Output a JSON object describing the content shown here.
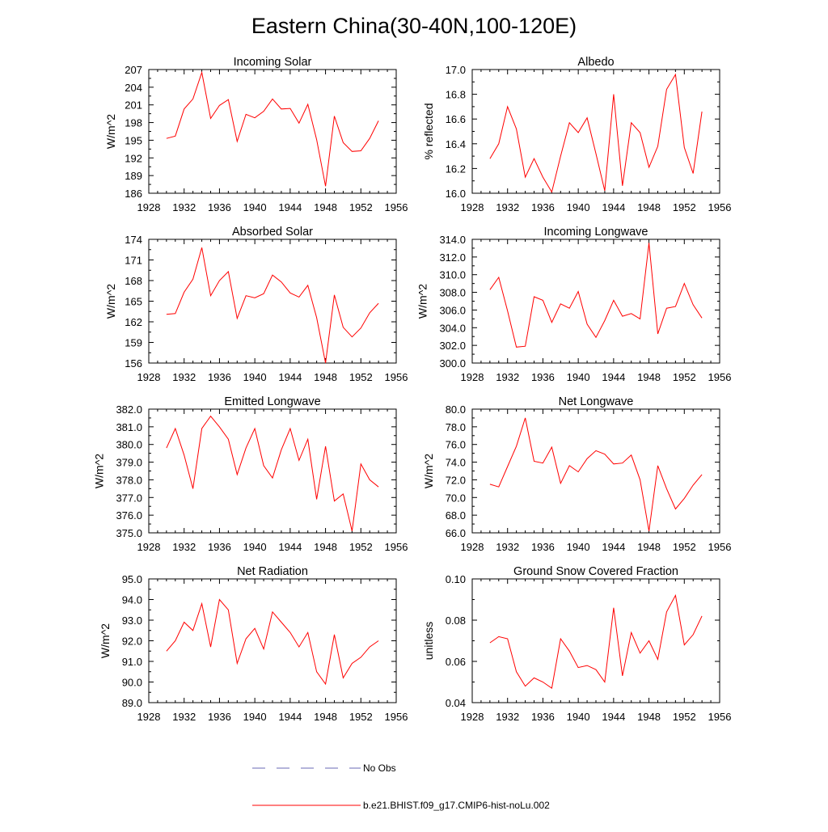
{
  "title": "Eastern China(30-40N,100-120E)",
  "legend": {
    "obs_label": "No Obs",
    "obs_color": "#6a6ab4",
    "model_label": "b.e21.BHIST.f09_g17.CMIP6-hist-noLu.002",
    "model_color": "#ff0000"
  },
  "years": [
    1930,
    1931,
    1932,
    1933,
    1934,
    1935,
    1936,
    1937,
    1938,
    1939,
    1940,
    1941,
    1942,
    1943,
    1944,
    1945,
    1946,
    1947,
    1948,
    1949,
    1950,
    1951,
    1952,
    1953,
    1954
  ],
  "chart_data": [
    {
      "type": "line",
      "title": "Incoming Solar",
      "ylabel": "W/m^2",
      "xlim": [
        1928,
        1956
      ],
      "xticks": [
        "1928",
        "1932",
        "1936",
        "1940",
        "1944",
        "1948",
        "1952",
        "1956"
      ],
      "ylim": [
        186,
        207
      ],
      "yticks": [
        "186",
        "189",
        "192",
        "195",
        "198",
        "201",
        "204",
        "207"
      ],
      "series": [
        {
          "values": [
            195.3,
            195.7,
            200.3,
            202.0,
            206.5,
            198.7,
            200.9,
            201.9,
            194.8,
            199.4,
            198.8,
            199.9,
            202.0,
            200.3,
            200.4,
            197.9,
            201.1,
            195.1,
            187.2,
            199.1,
            194.6,
            193.1,
            193.2,
            195.3,
            198.3
          ]
        }
      ]
    },
    {
      "type": "line",
      "title": "Albedo",
      "ylabel": "% reflected",
      "xlim": [
        1928,
        1956
      ],
      "xticks": [
        "1928",
        "1932",
        "1936",
        "1940",
        "1944",
        "1948",
        "1952",
        "1956"
      ],
      "ylim": [
        16.0,
        17.0
      ],
      "yticks": [
        "16.0",
        "16.2",
        "16.4",
        "16.6",
        "16.8",
        "17.0"
      ],
      "series": [
        {
          "values": [
            16.28,
            16.4,
            16.7,
            16.52,
            16.13,
            16.28,
            16.13,
            16.01,
            16.3,
            16.57,
            16.49,
            16.61,
            16.32,
            16.02,
            16.8,
            16.06,
            16.57,
            16.49,
            16.21,
            16.38,
            16.84,
            16.96,
            16.37,
            16.16,
            16.66
          ]
        }
      ]
    },
    {
      "type": "line",
      "title": "Absorbed Solar",
      "ylabel": "W/m^2",
      "xlim": [
        1928,
        1956
      ],
      "xticks": [
        "1928",
        "1932",
        "1936",
        "1940",
        "1944",
        "1948",
        "1952",
        "1956"
      ],
      "ylim": [
        156,
        174
      ],
      "yticks": [
        "156",
        "159",
        "162",
        "165",
        "168",
        "171",
        "174"
      ],
      "series": [
        {
          "values": [
            163.1,
            163.2,
            166.3,
            168.2,
            172.8,
            165.8,
            168.0,
            169.3,
            162.5,
            165.8,
            165.5,
            166.1,
            168.8,
            167.8,
            166.2,
            165.6,
            167.3,
            162.6,
            156.0,
            165.9,
            161.2,
            159.8,
            161.1,
            163.3,
            164.7
          ]
        }
      ]
    },
    {
      "type": "line",
      "title": "Incoming Longwave",
      "ylabel": "W/m^2",
      "xlim": [
        1928,
        1956
      ],
      "xticks": [
        "1928",
        "1932",
        "1936",
        "1940",
        "1944",
        "1948",
        "1952",
        "1956"
      ],
      "ylim": [
        300.0,
        314.0
      ],
      "yticks": [
        "300.0",
        "302.0",
        "304.0",
        "306.0",
        "308.0",
        "310.0",
        "312.0",
        "314.0"
      ],
      "series": [
        {
          "values": [
            308.3,
            309.7,
            305.9,
            301.8,
            301.9,
            307.5,
            307.1,
            304.6,
            306.7,
            306.2,
            308.1,
            304.4,
            302.9,
            304.8,
            307.1,
            305.3,
            305.6,
            305.0,
            313.6,
            303.3,
            306.2,
            306.4,
            309.0,
            306.6,
            305.1
          ]
        }
      ]
    },
    {
      "type": "line",
      "title": "Emitted Longwave",
      "ylabel": "W/m^2",
      "xlim": [
        1928,
        1956
      ],
      "xticks": [
        "1928",
        "1932",
        "1936",
        "1940",
        "1944",
        "1948",
        "1952",
        "1956"
      ],
      "ylim": [
        375.0,
        382.0
      ],
      "yticks": [
        "375.0",
        "376.0",
        "377.0",
        "378.0",
        "379.0",
        "380.0",
        "381.0",
        "382.0"
      ],
      "series": [
        {
          "values": [
            379.8,
            380.9,
            379.4,
            377.5,
            380.9,
            381.6,
            381.0,
            380.3,
            378.3,
            379.8,
            380.9,
            378.8,
            378.1,
            379.7,
            380.9,
            379.1,
            380.3,
            376.9,
            379.9,
            376.8,
            377.2,
            375.1,
            378.9,
            378.0,
            377.6
          ]
        }
      ]
    },
    {
      "type": "line",
      "title": "Net Longwave",
      "ylabel": "W/m^2",
      "xlim": [
        1928,
        1956
      ],
      "xticks": [
        "1928",
        "1932",
        "1936",
        "1940",
        "1944",
        "1948",
        "1952",
        "1956"
      ],
      "ylim": [
        66.0,
        80.0
      ],
      "yticks": [
        "66.0",
        "68.0",
        "70.0",
        "72.0",
        "74.0",
        "76.0",
        "78.0",
        "80.0"
      ],
      "series": [
        {
          "values": [
            71.5,
            71.2,
            73.5,
            75.8,
            79.0,
            74.1,
            73.9,
            75.7,
            71.6,
            73.6,
            72.9,
            74.4,
            75.3,
            74.9,
            73.8,
            73.9,
            74.8,
            72.0,
            66.2,
            73.6,
            71.0,
            68.7,
            69.9,
            71.4,
            72.6
          ]
        }
      ]
    },
    {
      "type": "line",
      "title": "Net Radiation",
      "ylabel": "W/m^2",
      "xlim": [
        1928,
        1956
      ],
      "xticks": [
        "1928",
        "1932",
        "1936",
        "1940",
        "1944",
        "1948",
        "1952",
        "1956"
      ],
      "ylim": [
        89.0,
        95.0
      ],
      "yticks": [
        "89.0",
        "90.0",
        "91.0",
        "92.0",
        "93.0",
        "94.0",
        "95.0"
      ],
      "series": [
        {
          "values": [
            91.5,
            92.0,
            92.9,
            92.5,
            93.8,
            91.7,
            94.0,
            93.5,
            90.9,
            92.1,
            92.6,
            91.6,
            93.4,
            92.9,
            92.4,
            91.7,
            92.4,
            90.5,
            89.9,
            92.3,
            90.2,
            90.9,
            91.2,
            91.7,
            92.0
          ]
        }
      ]
    },
    {
      "type": "line",
      "title": "Ground Snow Covered Fraction",
      "ylabel": "unitless",
      "xlim": [
        1928,
        1956
      ],
      "xticks": [
        "1928",
        "1932",
        "1936",
        "1940",
        "1944",
        "1948",
        "1952",
        "1956"
      ],
      "ylim": [
        0.04,
        0.1
      ],
      "yticks": [
        "0.04",
        "0.06",
        "0.08",
        "0.10"
      ],
      "series": [
        {
          "values": [
            0.069,
            0.072,
            0.071,
            0.055,
            0.048,
            0.052,
            0.05,
            0.047,
            0.071,
            0.065,
            0.057,
            0.058,
            0.056,
            0.05,
            0.086,
            0.053,
            0.074,
            0.064,
            0.07,
            0.061,
            0.084,
            0.092,
            0.068,
            0.073,
            0.082
          ]
        }
      ]
    }
  ]
}
